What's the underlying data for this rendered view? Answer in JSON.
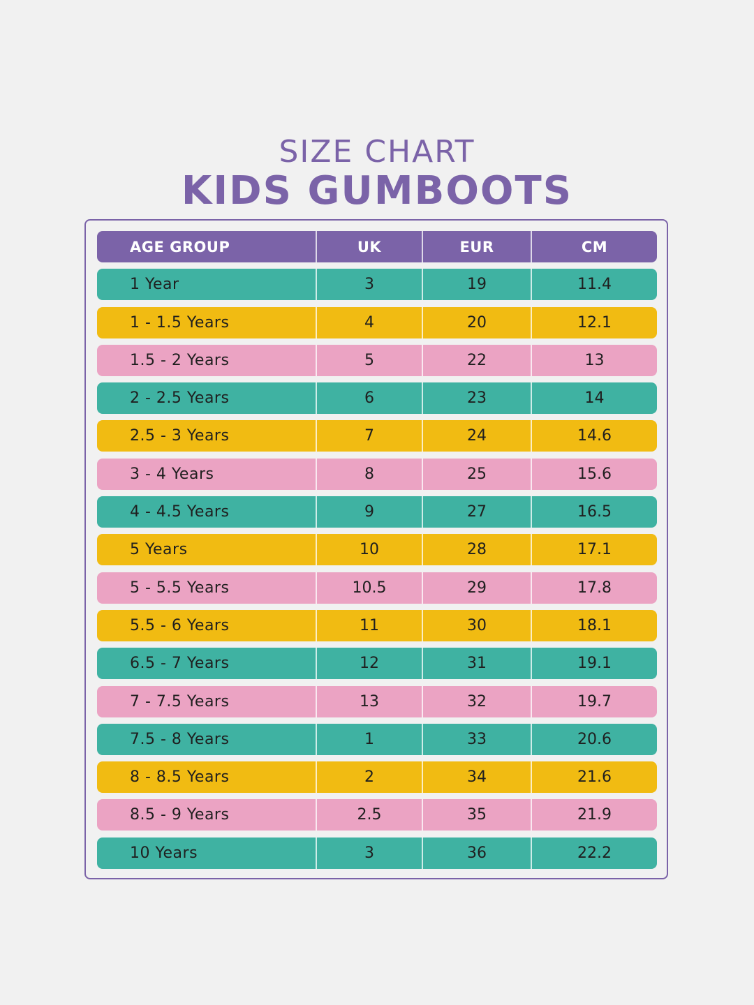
{
  "heading": {
    "subtitle": "SIZE CHART",
    "title": "KIDS GUMBOOTS"
  },
  "colors": {
    "purple": "#7b63a8",
    "teal": "#3fb2a2",
    "yellow": "#f1bb12",
    "pink": "#eba3c3",
    "background": "#f1f1f1"
  },
  "table": {
    "headers": [
      "AGE GROUP",
      "UK",
      "EUR",
      "CM"
    ],
    "rows": [
      {
        "age": "1 Year",
        "uk": "3",
        "eur": "19",
        "cm": "11.4",
        "color": "teal"
      },
      {
        "age": "1 - 1.5 Years",
        "uk": "4",
        "eur": "20",
        "cm": "12.1",
        "color": "yellow"
      },
      {
        "age": "1.5 - 2 Years",
        "uk": "5",
        "eur": "22",
        "cm": "13",
        "color": "pink"
      },
      {
        "age": "2 - 2.5 Years",
        "uk": "6",
        "eur": "23",
        "cm": "14",
        "color": "teal"
      },
      {
        "age": "2.5 - 3 Years",
        "uk": "7",
        "eur": "24",
        "cm": "14.6",
        "color": "yellow"
      },
      {
        "age": "3 - 4 Years",
        "uk": "8",
        "eur": "25",
        "cm": "15.6",
        "color": "pink"
      },
      {
        "age": "4 - 4.5 Years",
        "uk": "9",
        "eur": "27",
        "cm": "16.5",
        "color": "teal"
      },
      {
        "age": "5 Years",
        "uk": "10",
        "eur": "28",
        "cm": "17.1",
        "color": "yellow"
      },
      {
        "age": "5 - 5.5 Years",
        "uk": "10.5",
        "eur": "29",
        "cm": "17.8",
        "color": "pink"
      },
      {
        "age": "5.5 - 6 Years",
        "uk": "11",
        "eur": "30",
        "cm": "18.1",
        "color": "yellow"
      },
      {
        "age": "6.5 - 7 Years",
        "uk": "12",
        "eur": "31",
        "cm": "19.1",
        "color": "teal"
      },
      {
        "age": "7 - 7.5 Years",
        "uk": "13",
        "eur": "32",
        "cm": "19.7",
        "color": "pink"
      },
      {
        "age": "7.5 - 8 Years",
        "uk": "1",
        "eur": "33",
        "cm": "20.6",
        "color": "teal"
      },
      {
        "age": "8 - 8.5 Years",
        "uk": "2",
        "eur": "34",
        "cm": "21.6",
        "color": "yellow"
      },
      {
        "age": "8.5 - 9 Years",
        "uk": "2.5",
        "eur": "35",
        "cm": "21.9",
        "color": "pink"
      },
      {
        "age": "10 Years",
        "uk": "3",
        "eur": "36",
        "cm": "22.2",
        "color": "teal"
      }
    ]
  }
}
